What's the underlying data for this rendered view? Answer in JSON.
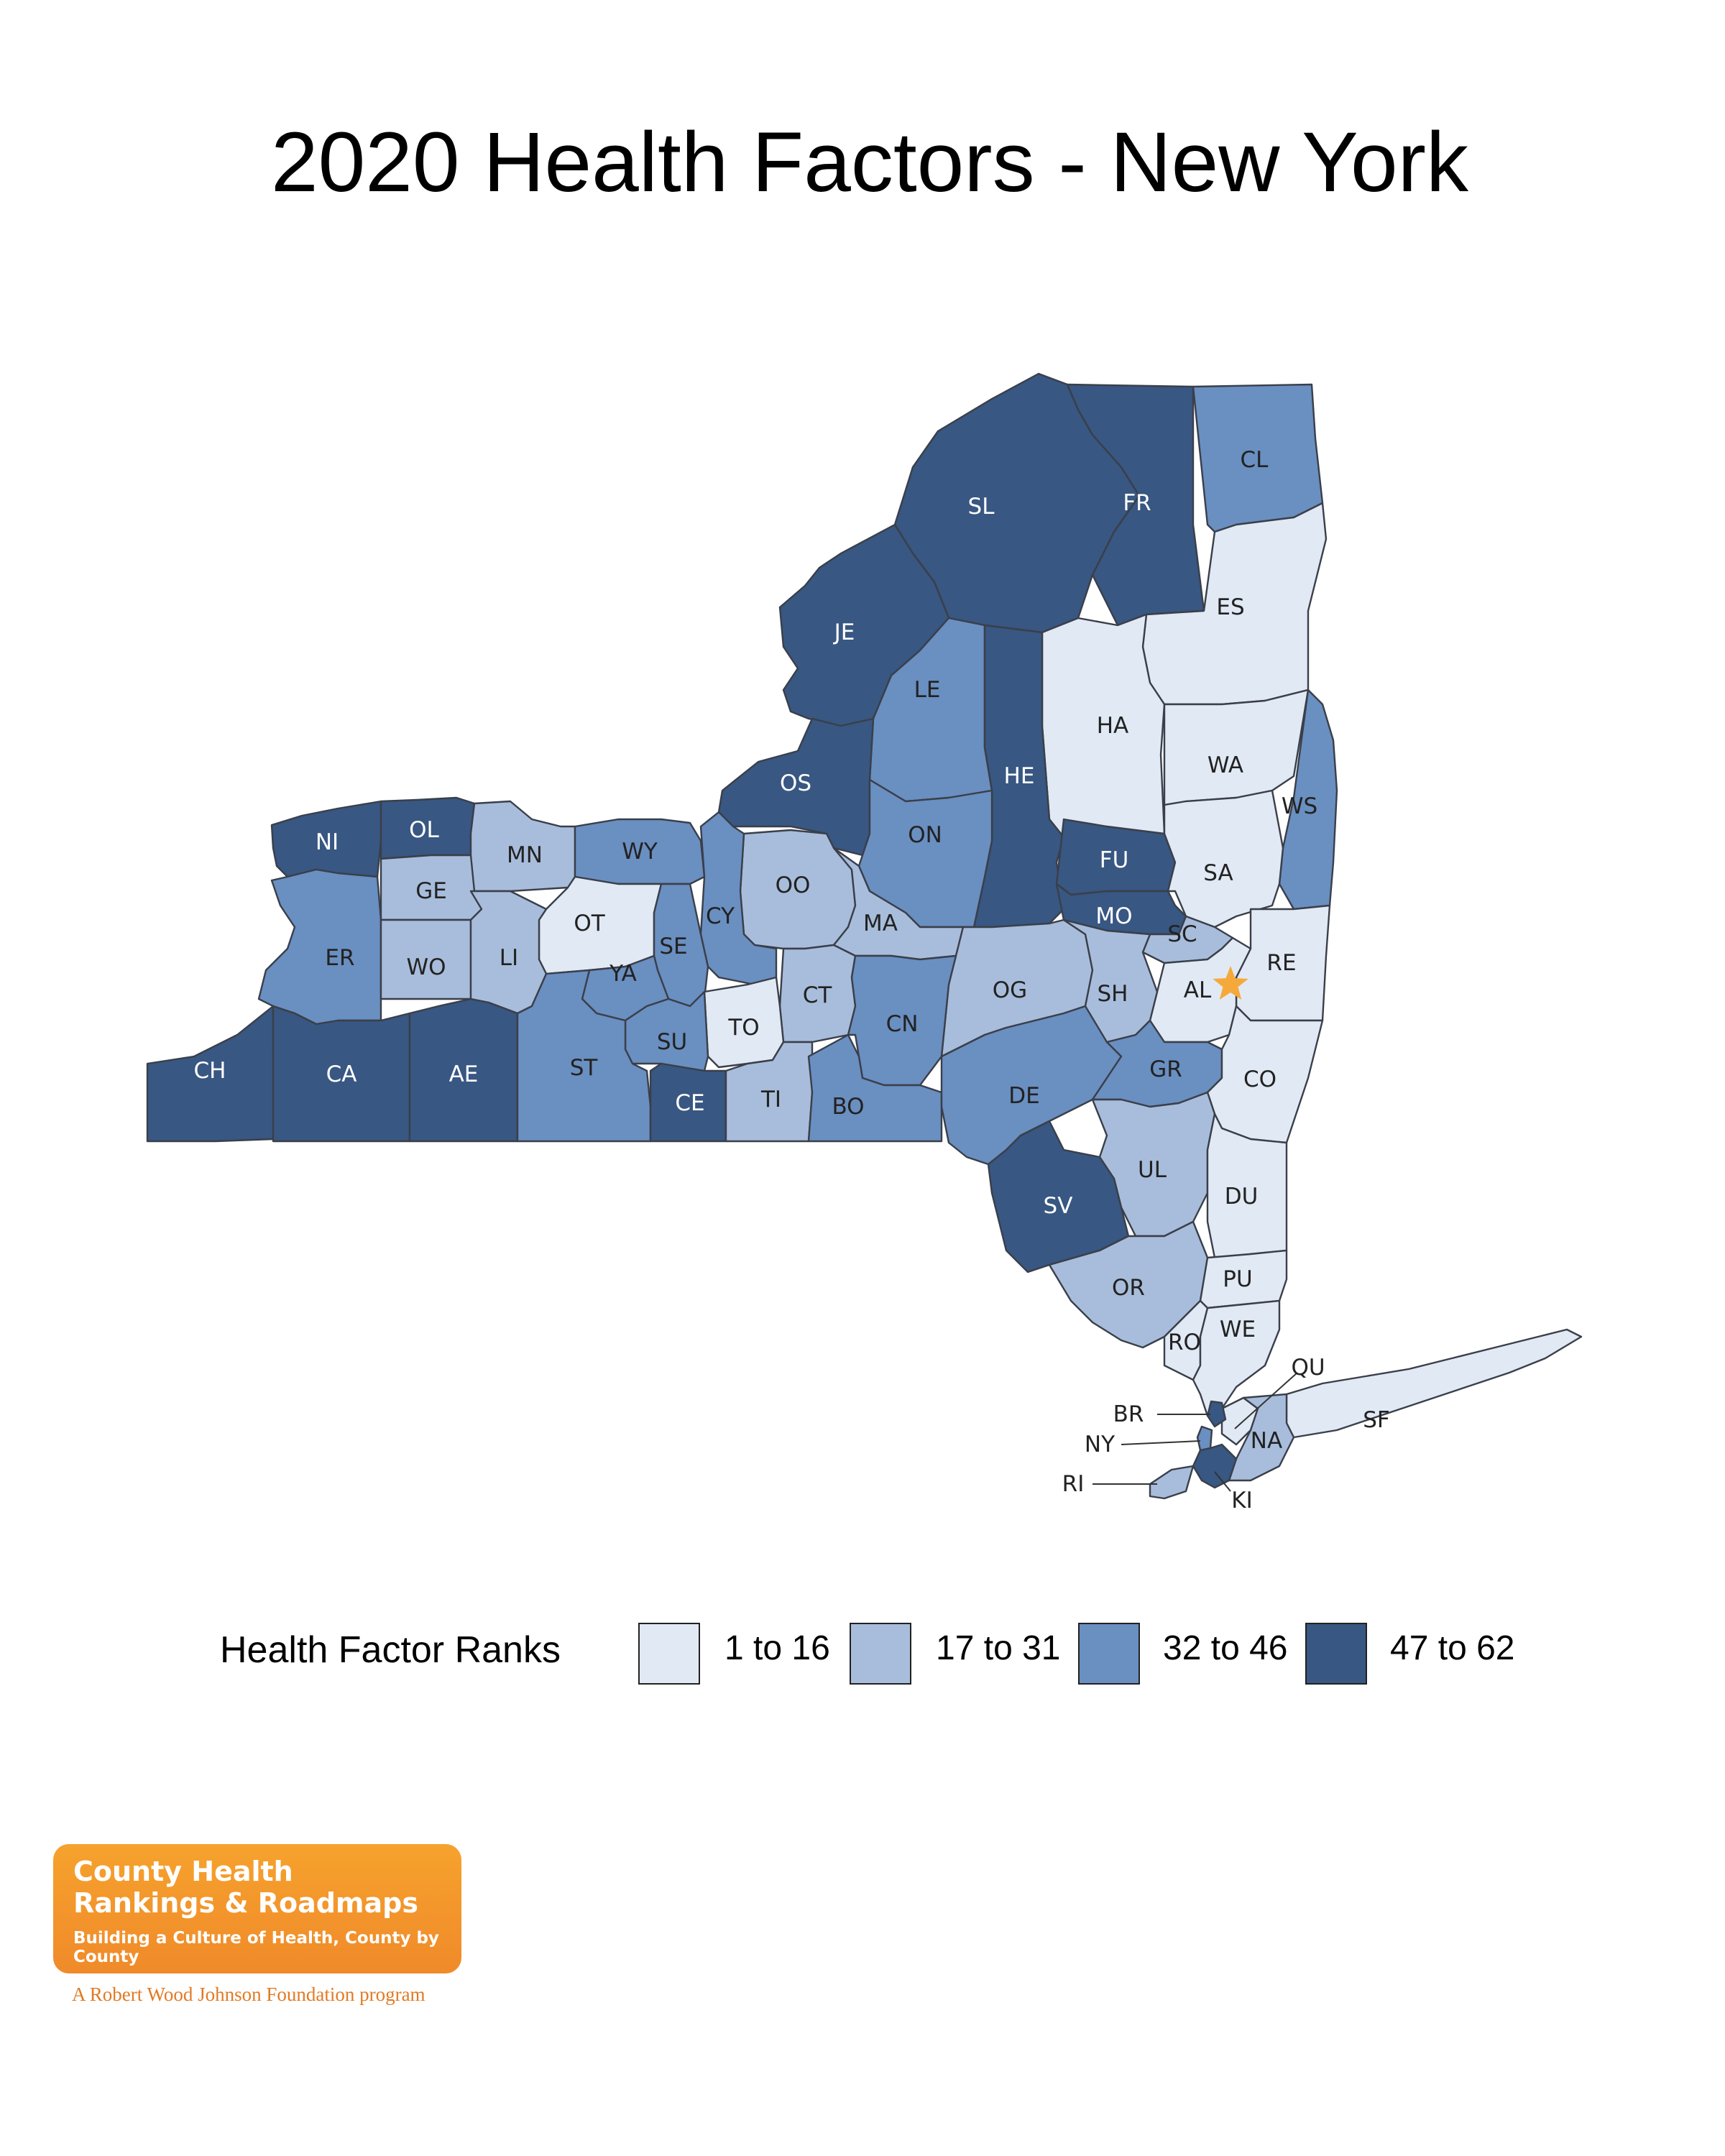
{
  "title": "2020 Health Factors - New York",
  "legend": {
    "title": "Health Factor Ranks",
    "classes": [
      {
        "label": "1 to 16",
        "color": "#e1e9f4"
      },
      {
        "label": "17 to 31",
        "color": "#a8bddb"
      },
      {
        "label": "32 to 46",
        "color": "#6a8fc1"
      },
      {
        "label": "47 to 62",
        "color": "#385782"
      }
    ]
  },
  "capital_marker": {
    "county": "AL",
    "icon": "star-icon",
    "color": "#f5a93a"
  },
  "counties": [
    {
      "abbr": "SL",
      "rank_class": 3
    },
    {
      "abbr": "FR",
      "rank_class": 3
    },
    {
      "abbr": "CL",
      "rank_class": 2
    },
    {
      "abbr": "JE",
      "rank_class": 3
    },
    {
      "abbr": "LE",
      "rank_class": 2
    },
    {
      "abbr": "ES",
      "rank_class": 0
    },
    {
      "abbr": "HA",
      "rank_class": 0
    },
    {
      "abbr": "HE",
      "rank_class": 3
    },
    {
      "abbr": "WA",
      "rank_class": 0
    },
    {
      "abbr": "WS",
      "rank_class": 2
    },
    {
      "abbr": "OS",
      "rank_class": 3
    },
    {
      "abbr": "ON",
      "rank_class": 2
    },
    {
      "abbr": "FU",
      "rank_class": 3
    },
    {
      "abbr": "SA",
      "rank_class": 0
    },
    {
      "abbr": "MO",
      "rank_class": 3
    },
    {
      "abbr": "SC",
      "rank_class": 1
    },
    {
      "abbr": "RE",
      "rank_class": 0
    },
    {
      "abbr": "AL",
      "rank_class": 0
    },
    {
      "abbr": "NI",
      "rank_class": 3
    },
    {
      "abbr": "OL",
      "rank_class": 3
    },
    {
      "abbr": "MN",
      "rank_class": 1
    },
    {
      "abbr": "WY",
      "rank_class": 2
    },
    {
      "abbr": "GE",
      "rank_class": 1
    },
    {
      "abbr": "OT",
      "rank_class": 0
    },
    {
      "abbr": "OO",
      "rank_class": 1
    },
    {
      "abbr": "MA",
      "rank_class": 1
    },
    {
      "abbr": "CY",
      "rank_class": 2
    },
    {
      "abbr": "ER",
      "rank_class": 2
    },
    {
      "abbr": "WO",
      "rank_class": 1
    },
    {
      "abbr": "LI",
      "rank_class": 1
    },
    {
      "abbr": "SE",
      "rank_class": 2
    },
    {
      "abbr": "YA",
      "rank_class": 2
    },
    {
      "abbr": "CT",
      "rank_class": 1
    },
    {
      "abbr": "OG",
      "rank_class": 1
    },
    {
      "abbr": "SH",
      "rank_class": 1
    },
    {
      "abbr": "CN",
      "rank_class": 2
    },
    {
      "abbr": "TO",
      "rank_class": 0
    },
    {
      "abbr": "SU",
      "rank_class": 2
    },
    {
      "abbr": "CH",
      "rank_class": 3
    },
    {
      "abbr": "CA",
      "rank_class": 3
    },
    {
      "abbr": "AE",
      "rank_class": 3
    },
    {
      "abbr": "ST",
      "rank_class": 2
    },
    {
      "abbr": "CE",
      "rank_class": 3
    },
    {
      "abbr": "TI",
      "rank_class": 1
    },
    {
      "abbr": "BO",
      "rank_class": 2
    },
    {
      "abbr": "DE",
      "rank_class": 2
    },
    {
      "abbr": "GR",
      "rank_class": 2
    },
    {
      "abbr": "CO",
      "rank_class": 0
    },
    {
      "abbr": "UL",
      "rank_class": 1
    },
    {
      "abbr": "DU",
      "rank_class": 0
    },
    {
      "abbr": "SV",
      "rank_class": 3
    },
    {
      "abbr": "OR",
      "rank_class": 1
    },
    {
      "abbr": "PU",
      "rank_class": 0
    },
    {
      "abbr": "RO",
      "rank_class": 0
    },
    {
      "abbr": "WE",
      "rank_class": 0
    },
    {
      "abbr": "QU",
      "rank_class": 0
    },
    {
      "abbr": "SF",
      "rank_class": 0
    },
    {
      "abbr": "NA",
      "rank_class": 1
    },
    {
      "abbr": "BR",
      "rank_class": 3
    },
    {
      "abbr": "NY",
      "rank_class": 2
    },
    {
      "abbr": "KI",
      "rank_class": 3
    },
    {
      "abbr": "RI",
      "rank_class": 1
    }
  ],
  "logo": {
    "line1": "County Health",
    "line2": "Rankings & Roadmaps",
    "tagline": "Building a Culture of Health, County by County",
    "sponsor": "A Robert Wood Johnson Foundation program"
  }
}
